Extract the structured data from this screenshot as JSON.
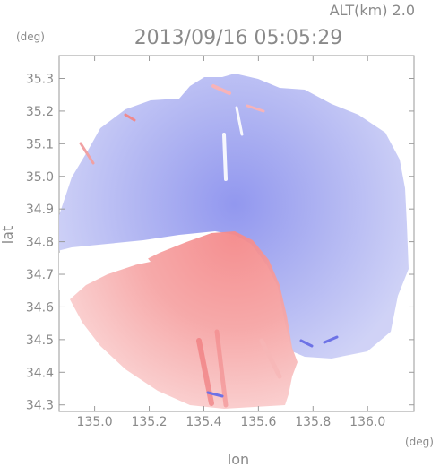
{
  "chart_data": {
    "type": "heatmap",
    "title": "2013/09/16 05:05:29",
    "altitude_label": "ALT(km) 2.0",
    "xlabel": "lon",
    "ylabel": "lat",
    "x_unit": "(deg)",
    "y_unit": "(deg)",
    "xlim": [
      134.87,
      136.17
    ],
    "ylim": [
      34.28,
      35.37
    ],
    "x_ticks": [
      135.0,
      135.2,
      135.4,
      135.6,
      135.8,
      136.0
    ],
    "x_tick_labels": [
      "135.0",
      "135.2",
      "135.4",
      "135.6",
      "135.8",
      "136.0"
    ],
    "y_ticks": [
      34.3,
      34.4,
      34.5,
      34.6,
      34.7,
      34.8,
      34.9,
      35.0,
      35.1,
      35.2,
      35.3
    ],
    "y_tick_labels": [
      "34.3",
      "34.4",
      "34.5",
      "34.6",
      "34.7",
      "34.8",
      "34.9",
      "35.0",
      "35.1",
      "35.2",
      "35.3"
    ],
    "radar_center": {
      "lon": 135.5,
      "lat": 34.81
    },
    "colors": {
      "toward": "#f5a0a0",
      "away": "#a7abf0",
      "axis": "#9a9a9a"
    }
  }
}
